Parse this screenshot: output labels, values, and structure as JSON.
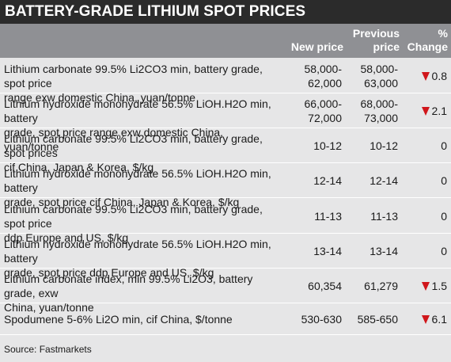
{
  "title": "BATTERY-GRADE LITHIUM SPOT PRICES",
  "columns": {
    "new_price": "New price",
    "previous_price_line1": "Previous",
    "previous_price_line2": "price",
    "change_line1": "%",
    "change_line2": "Change"
  },
  "rows": [
    {
      "desc_line1": "Lithium carbonate 99.5% Li2CO3 min, battery grade, spot price",
      "desc_line2": "range exw domestic China, yuan/tonne",
      "new_line1": "58,000-",
      "new_line2": "62,000",
      "prev_line1": "58,000-",
      "prev_line2": "63,000",
      "change": "0.8",
      "direction": "down"
    },
    {
      "desc_line1": "Lithium hydroxide monohydrate 56.5% LiOH.H2O min, battery",
      "desc_line2": "grade, spot price range exw domestic China, yuan/tonne",
      "new_line1": "66,000-",
      "new_line2": "72,000",
      "prev_line1": "68,000-",
      "prev_line2": "73,000",
      "change": "2.1",
      "direction": "down"
    },
    {
      "desc_line1": "Lithium carbonate 99.5% Li2CO3 min, battery grade, spot prices",
      "desc_line2": "cif China, Japan & Korea, $/kg",
      "new_value": "10-12",
      "prev_value": "10-12",
      "change": "0",
      "direction": "none"
    },
    {
      "desc_line1": "Lithium hydroxide monohydrate 56.5% LiOH.H2O min, battery",
      "desc_line2": "grade, spot price cif China, Japan & Korea, $/kg",
      "new_value": "12-14",
      "prev_value": "12-14",
      "change": "0",
      "direction": "none"
    },
    {
      "desc_line1": "Lithium carbonate 99.5% Li2CO3 min, battery grade, spot price",
      "desc_line2": "ddp Europe and US, $/kg",
      "new_value": "11-13",
      "prev_value": "11-13",
      "change": "0",
      "direction": "none"
    },
    {
      "desc_line1": "Lithium hydroxide monohydrate 56.5% LiOH.H2O min, battery",
      "desc_line2": "grade, spot price ddp Europe and US, $/kg",
      "new_value": "13-14",
      "prev_value": "13-14",
      "change": "0",
      "direction": "none"
    },
    {
      "desc_line1": "Lithium carbonate index, min 99.5% Li2O3, battery grade, exw",
      "desc_line2": "China, yuan/tonne",
      "new_value": "60,354",
      "prev_value": "61,279",
      "change": "1.5",
      "direction": "down"
    },
    {
      "desc_line1": "Spodumene 5-6% Li2O min, cif China, $/tonne",
      "desc_line2": "",
      "new_value": "530-630",
      "prev_value": "585-650",
      "change": "6.1",
      "direction": "down"
    }
  ],
  "source": "Source: Fastmarkets",
  "colors": {
    "title_bg": "#2b2b2b",
    "header_bg": "#8f9094",
    "body_bg": "#e6e6e7",
    "down_arrow": "#d0161b"
  },
  "icons": {
    "down": "down-triangle-icon"
  }
}
